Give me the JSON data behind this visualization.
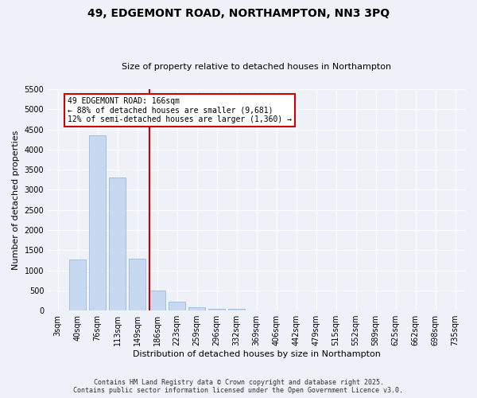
{
  "title": "49, EDGEMONT ROAD, NORTHAMPTON, NN3 3PQ",
  "subtitle": "Size of property relative to detached houses in Northampton",
  "xlabel": "Distribution of detached houses by size in Northampton",
  "ylabel": "Number of detached properties",
  "categories": [
    "3sqm",
    "40sqm",
    "76sqm",
    "113sqm",
    "149sqm",
    "186sqm",
    "223sqm",
    "259sqm",
    "296sqm",
    "332sqm",
    "369sqm",
    "406sqm",
    "442sqm",
    "479sqm",
    "515sqm",
    "552sqm",
    "589sqm",
    "625sqm",
    "662sqm",
    "698sqm",
    "735sqm"
  ],
  "bar_values": [
    0,
    1260,
    4350,
    3300,
    1280,
    500,
    210,
    85,
    50,
    40,
    0,
    0,
    0,
    0,
    0,
    0,
    0,
    0,
    0,
    0,
    0
  ],
  "bar_color": "#c6d9f0",
  "bar_edge_color": "#8ab4d9",
  "vline_x_index": 4.62,
  "vline_color": "#cc0000",
  "annotation_box_color": "#cc0000",
  "annotation_lines": [
    "49 EDGEMONT ROAD: 166sqm",
    "← 88% of detached houses are smaller (9,681)",
    "12% of semi-detached houses are larger (1,360) →"
  ],
  "ylim": [
    0,
    5500
  ],
  "yticks": [
    0,
    500,
    1000,
    1500,
    2000,
    2500,
    3000,
    3500,
    4000,
    4500,
    5000,
    5500
  ],
  "footer_line1": "Contains HM Land Registry data © Crown copyright and database right 2025.",
  "footer_line2": "Contains public sector information licensed under the Open Government Licence v3.0.",
  "bg_color": "#eef2f8",
  "plot_bg_color": "#eef2f8",
  "title_fontsize": 10,
  "subtitle_fontsize": 8,
  "ylabel_fontsize": 8,
  "xlabel_fontsize": 8,
  "tick_fontsize": 7,
  "footer_fontsize": 6
}
